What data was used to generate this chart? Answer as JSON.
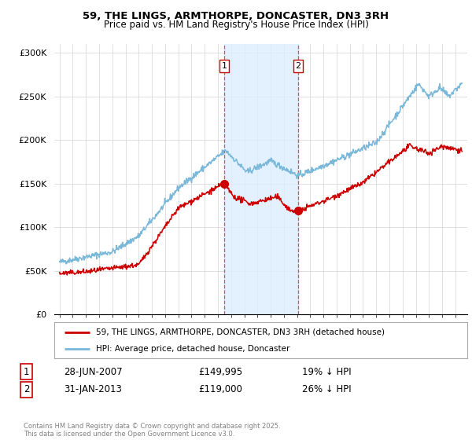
{
  "title1": "59, THE LINGS, ARMTHORPE, DONCASTER, DN3 3RH",
  "title2": "Price paid vs. HM Land Registry's House Price Index (HPI)",
  "ylabel_ticks": [
    "£0",
    "£50K",
    "£100K",
    "£150K",
    "£200K",
    "£250K",
    "£300K"
  ],
  "ytick_values": [
    0,
    50000,
    100000,
    150000,
    200000,
    250000,
    300000
  ],
  "ylim": [
    0,
    310000
  ],
  "legend_line1": "59, THE LINGS, ARMTHORPE, DONCASTER, DN3 3RH (detached house)",
  "legend_line2": "HPI: Average price, detached house, Doncaster",
  "annotation1_label": "1",
  "annotation1_date": "28-JUN-2007",
  "annotation1_price": "£149,995",
  "annotation1_hpi": "19% ↓ HPI",
  "annotation2_label": "2",
  "annotation2_date": "31-JAN-2013",
  "annotation2_price": "£119,000",
  "annotation2_hpi": "26% ↓ HPI",
  "copyright": "Contains HM Land Registry data © Crown copyright and database right 2025.\nThis data is licensed under the Open Government Licence v3.0.",
  "hpi_color": "#7ab8d9",
  "price_color": "#cc0000",
  "marker_color": "#cc0000",
  "shade_color": "#ddeeff",
  "vline_color": "#ff4444",
  "background": "#ffffff",
  "sale1_year": 2007.49,
  "sale1_price": 149995,
  "sale2_year": 2013.08,
  "sale2_price": 119000
}
